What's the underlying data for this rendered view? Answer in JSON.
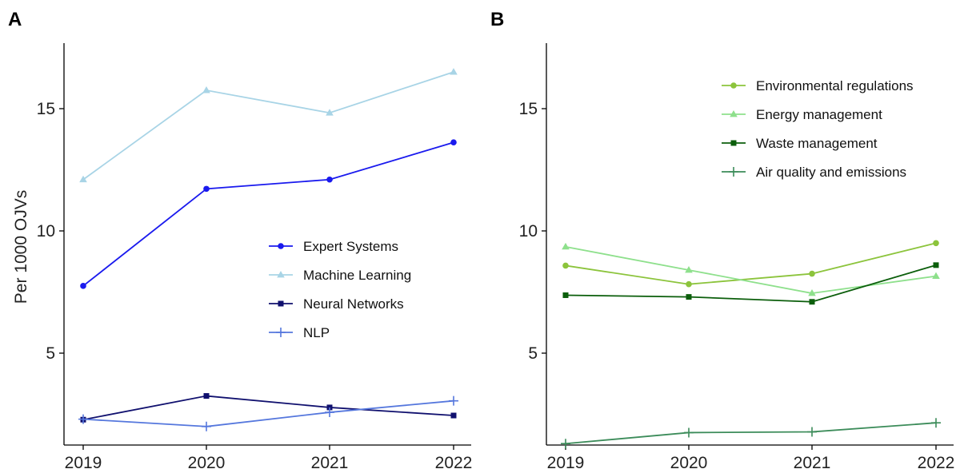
{
  "chart_data": [
    {
      "panel": "A",
      "type": "line",
      "ylabel": "Per 1000 OJVs",
      "xlabel": "",
      "categories": [
        "2019",
        "2020",
        "2021",
        "2022"
      ],
      "ylim": [
        1.3,
        17.8
      ],
      "yticks": [
        5,
        10,
        15
      ],
      "legend_position": "center-right",
      "series": [
        {
          "name": "Expert Systems",
          "values": [
            7.75,
            11.72,
            12.1,
            13.62
          ],
          "color": "#1a1aee",
          "marker": "circle"
        },
        {
          "name": "Machine Learning",
          "values": [
            12.1,
            15.75,
            14.83,
            16.5
          ],
          "color": "#a8d4e6",
          "marker": "triangle"
        },
        {
          "name": "Neural Networks",
          "values": [
            2.28,
            3.25,
            2.78,
            2.45
          ],
          "color": "#10106e",
          "marker": "square"
        },
        {
          "name": "NLP",
          "values": [
            2.3,
            2.0,
            2.58,
            3.05
          ],
          "color": "#5577dd",
          "marker": "plus"
        }
      ]
    },
    {
      "panel": "B",
      "type": "line",
      "ylabel": "",
      "xlabel": "",
      "categories": [
        "2019",
        "2020",
        "2021",
        "2022"
      ],
      "ylim": [
        1.3,
        17.8
      ],
      "yticks": [
        5,
        10,
        15
      ],
      "legend_position": "top-right",
      "series": [
        {
          "name": "Environmental regulations",
          "values": [
            8.58,
            7.82,
            8.25,
            9.5
          ],
          "color": "#8cc43c",
          "marker": "circle"
        },
        {
          "name": "Energy management",
          "values": [
            9.35,
            8.4,
            7.45,
            8.15
          ],
          "color": "#8ee08c",
          "marker": "triangle"
        },
        {
          "name": "Waste management",
          "values": [
            7.37,
            7.3,
            7.1,
            8.6
          ],
          "color": "#0b5e0b",
          "marker": "square"
        },
        {
          "name": "Air quality and emissions",
          "values": [
            1.3,
            1.75,
            1.78,
            2.15
          ],
          "color": "#3c8c5a",
          "marker": "plus"
        }
      ]
    }
  ]
}
